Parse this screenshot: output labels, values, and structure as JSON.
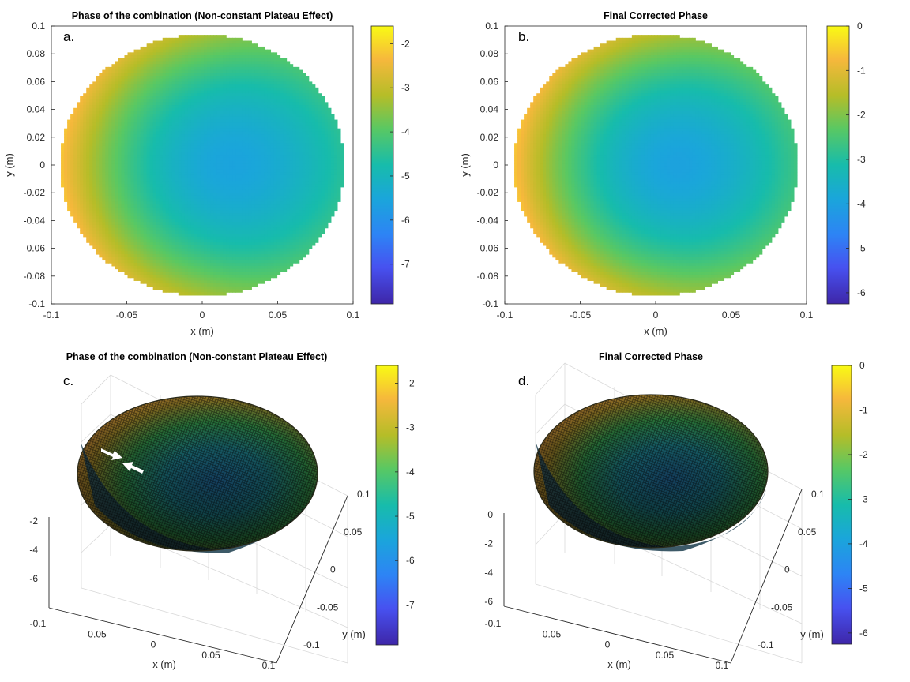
{
  "chart_data": [
    {
      "type": "heatmap",
      "panel_label": "a.",
      "title": "Phase of the combination (Non-constant Plateau Effect)",
      "xlabel": "x (m)",
      "ylabel": "y (m)",
      "xlim": [
        -0.1,
        0.1
      ],
      "ylim": [
        -0.1,
        0.1
      ],
      "x_ticks": [
        "-0.1",
        "-0.05",
        "0",
        "0.05",
        "0.1"
      ],
      "y_ticks": [
        "0.1",
        "0.08",
        "0.06",
        "0.04",
        "0.02",
        "0",
        "-0.02",
        "-0.04",
        "-0.06",
        "-0.08",
        "-0.1"
      ],
      "colorbar": {
        "range": [
          -7.9,
          -1.6
        ],
        "ticks": [
          "-2",
          "-3",
          "-4",
          "-5",
          "-6",
          "-7"
        ]
      },
      "surface": {
        "radius_m": 0.094,
        "min_value": -5.6,
        "min_at": [
          0.02,
          0.0
        ],
        "edge_value": -2.4,
        "left_edge_value": -2.2,
        "right_edge_value": -3.3
      }
    },
    {
      "type": "heatmap",
      "panel_label": "b.",
      "title": "Final Corrected Phase",
      "xlabel": "x (m)",
      "ylabel": "y (m)",
      "xlim": [
        -0.1,
        0.1
      ],
      "ylim": [
        -0.1,
        0.1
      ],
      "x_ticks": [
        "-0.1",
        "-0.05",
        "0",
        "0.05",
        "0.1"
      ],
      "y_ticks": [
        "0.1",
        "0.08",
        "0.06",
        "0.04",
        "0.02",
        "0",
        "-0.02",
        "-0.04",
        "-0.06",
        "-0.08",
        "-0.1"
      ],
      "colorbar": {
        "range": [
          -6.25,
          0
        ],
        "ticks": [
          "0",
          "-1",
          "-2",
          "-3",
          "-4",
          "-5",
          "-6"
        ]
      },
      "surface": {
        "radius_m": 0.094,
        "min_value": -4.0,
        "min_at": [
          0.015,
          0.0
        ],
        "edge_value": -0.8,
        "left_edge_value": -0.6,
        "right_edge_value": -1.6
      }
    },
    {
      "type": "surface3d",
      "panel_label": "c.",
      "title": "Phase of the combination (Non-constant Plateau Effect)",
      "xlabel": "x (m)",
      "ylabel": "y (m)",
      "x_ticks": [
        "-0.1",
        "-0.05",
        "0",
        "0.05",
        "0.1"
      ],
      "y_ticks": [
        "0.1",
        "0.05",
        "0",
        "-0.05",
        "-0.1"
      ],
      "z_ticks": [
        "-2",
        "-4",
        "-6"
      ],
      "colorbar": {
        "range": [
          -7.9,
          -1.6
        ],
        "ticks": [
          "-2",
          "-3",
          "-4",
          "-5",
          "-6",
          "-7"
        ]
      },
      "annotation": "two white arrows pointing at a ridge on the left rim"
    },
    {
      "type": "surface3d",
      "panel_label": "d.",
      "title": "Final Corrected Phase",
      "xlabel": "x (m)",
      "ylabel": "y (m)",
      "x_ticks": [
        "-0.1",
        "-0.05",
        "0",
        "0.05",
        "0.1"
      ],
      "y_ticks": [
        "0.1",
        "0.05",
        "0",
        "-0.05",
        "-0.1"
      ],
      "z_ticks": [
        "0",
        "-2",
        "-4",
        "-6"
      ],
      "colorbar": {
        "range": [
          -6.25,
          0
        ],
        "ticks": [
          "0",
          "-1",
          "-2",
          "-3",
          "-4",
          "-5",
          "-6"
        ]
      }
    }
  ]
}
